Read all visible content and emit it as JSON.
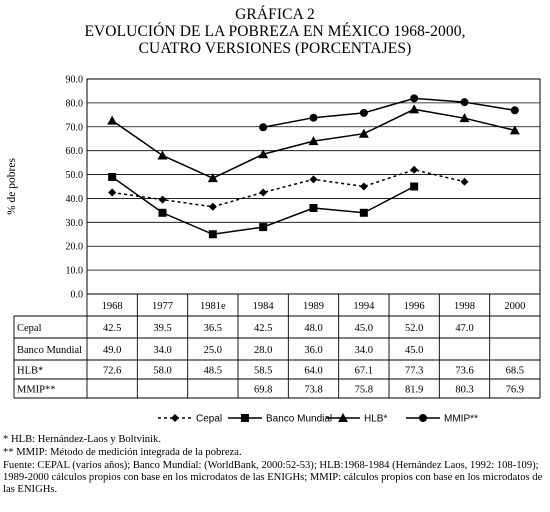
{
  "title": {
    "line1": "GRÁFICA 2",
    "line2": "EVOLUCIÓN DE LA POBREZA EN MÉXICO 1968-2000,",
    "line3": "CUATRO VERSIONES (PORCENTAJES)"
  },
  "chart_data": {
    "type": "line",
    "title": "EVOLUCIÓN DE LA POBREZA EN MÉXICO 1968-2000, CUATRO VERSIONES (PORCENTAJES)",
    "ylabel": "% de pobres",
    "xlabel": "",
    "ylim": [
      0,
      90
    ],
    "yticks": [
      "0.0",
      "10.0",
      "20.0",
      "30.0",
      "40.0",
      "50.0",
      "60.0",
      "70.0",
      "80.0",
      "90.0"
    ],
    "grid": true,
    "legend": "bottom",
    "categories": [
      "1968",
      "1977",
      "1981e",
      "1984",
      "1989",
      "1994",
      "1996",
      "1998",
      "2000"
    ],
    "series": [
      {
        "name": "Cepal",
        "marker": "diamond",
        "dash": "dotted",
        "values": [
          42.5,
          39.5,
          36.5,
          42.5,
          48.0,
          45.0,
          52.0,
          47.0,
          null
        ],
        "labels": [
          "42.5",
          "39.5",
          "36.5",
          "42.5",
          "48.0",
          "45.0",
          "52.0",
          "47.0",
          ""
        ]
      },
      {
        "name": "Banco Mundial",
        "marker": "square",
        "dash": "solid",
        "values": [
          49.0,
          34.0,
          25.0,
          28.0,
          36.0,
          34.0,
          45.0,
          null,
          null
        ],
        "labels": [
          "49.0",
          "34.0",
          "25.0",
          "28.0",
          "36.0",
          "34.0",
          "45.0",
          "",
          ""
        ]
      },
      {
        "name": "HLB*",
        "marker": "triangle",
        "dash": "solid",
        "values": [
          72.6,
          58.0,
          48.5,
          58.5,
          64.0,
          67.1,
          77.3,
          73.6,
          68.5
        ],
        "labels": [
          "72.6",
          "58.0",
          "48.5",
          "58.5",
          "64.0",
          "67.1",
          "77.3",
          "73.6",
          "68.5"
        ]
      },
      {
        "name": "MMIP**",
        "marker": "circle",
        "dash": "solid",
        "values": [
          null,
          null,
          null,
          69.8,
          73.8,
          75.8,
          81.9,
          80.3,
          76.9
        ],
        "labels": [
          "",
          "",
          "",
          "69.8",
          "73.8",
          "75.8",
          "81.9",
          "80.3",
          "76.9"
        ]
      }
    ]
  },
  "notes": {
    "note1": "* HLB: Hernández-Laos y Boltvinik.",
    "note2": "** MMIP: Método de medición integrada de la pobreza.",
    "note3": "Fuente: CEPAL (varios años); Banco Mundial: (WorldBank, 2000:52-53); HLB:1968-1984 (Hernández Laos, 1992: 108-109); 1989-2000 cálculos propios con base en los microdatos de las ENIGHs; MMIP: cálculos propios con base en los microdatos de las ENIGHs."
  }
}
